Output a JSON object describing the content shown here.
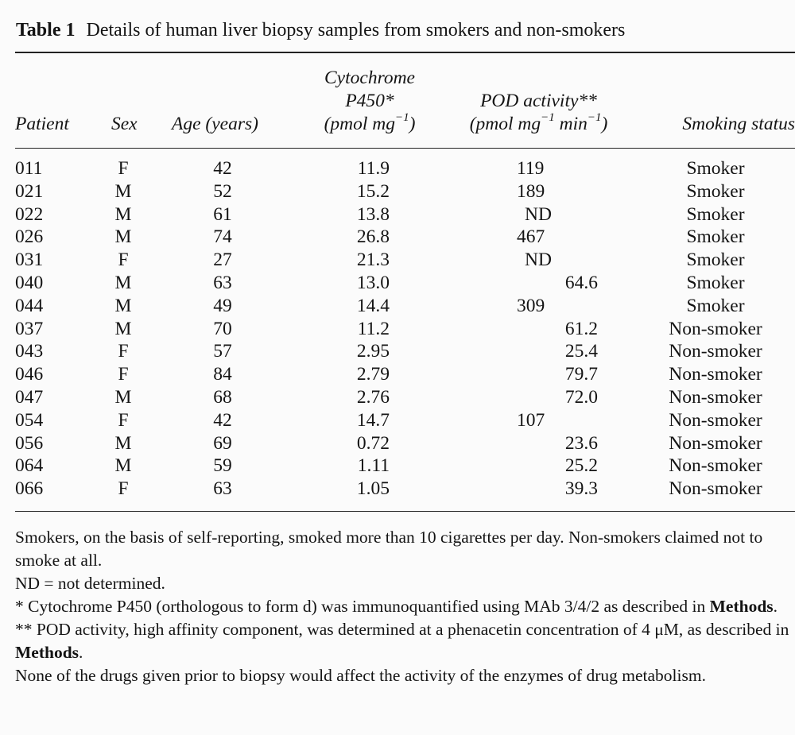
{
  "table": {
    "label": "Table 1",
    "title": "Details of human liver biopsy samples from smokers and non-smokers",
    "headers": {
      "patient": "Patient",
      "sex": "Sex",
      "age": "Age (years)",
      "cyp_line1": "Cytochrome",
      "cyp_line2": "P450*",
      "cyp_unit_pre": "(pmol mg",
      "cyp_unit_sup": "−1",
      "cyp_unit_post": ")",
      "pod_line1": "POD activity**",
      "pod_unit_pre": "(pmol mg",
      "pod_unit_sup1": "−1",
      "pod_unit_mid": " min",
      "pod_unit_sup2": "−1",
      "pod_unit_post": ")",
      "smoking": "Smoking status"
    },
    "rows": [
      {
        "patient": "011",
        "sex": "F",
        "age": "42",
        "cyp": "11.9",
        "pod": "119",
        "status": "Smoker"
      },
      {
        "patient": "021",
        "sex": "M",
        "age": "52",
        "cyp": "15.2",
        "pod": "189",
        "status": "Smoker"
      },
      {
        "patient": "022",
        "sex": "M",
        "age": "61",
        "cyp": "13.8",
        "pod": "ND",
        "status": "Smoker"
      },
      {
        "patient": "026",
        "sex": "M",
        "age": "74",
        "cyp": "26.8",
        "pod": "467",
        "status": "Smoker"
      },
      {
        "patient": "031",
        "sex": "F",
        "age": "27",
        "cyp": "21.3",
        "pod": "ND",
        "status": "Smoker"
      },
      {
        "patient": "040",
        "sex": "M",
        "age": "63",
        "cyp": "13.0",
        "pod": "64.6",
        "status": "Smoker"
      },
      {
        "patient": "044",
        "sex": "M",
        "age": "49",
        "cyp": "14.4",
        "pod": "309",
        "status": "Smoker"
      },
      {
        "patient": "037",
        "sex": "M",
        "age": "70",
        "cyp": "11.2",
        "pod": "61.2",
        "status": "Non-smoker"
      },
      {
        "patient": "043",
        "sex": "F",
        "age": "57",
        "cyp": "2.95",
        "pod": "25.4",
        "status": "Non-smoker"
      },
      {
        "patient": "046",
        "sex": "F",
        "age": "84",
        "cyp": "2.79",
        "pod": "79.7",
        "status": "Non-smoker"
      },
      {
        "patient": "047",
        "sex": "M",
        "age": "68",
        "cyp": "2.76",
        "pod": "72.0",
        "status": "Non-smoker"
      },
      {
        "patient": "054",
        "sex": "F",
        "age": "42",
        "cyp": "14.7",
        "pod": "107",
        "status": "Non-smoker"
      },
      {
        "patient": "056",
        "sex": "M",
        "age": "69",
        "cyp": "0.72",
        "pod": "23.6",
        "status": "Non-smoker"
      },
      {
        "patient": "064",
        "sex": "M",
        "age": "59",
        "cyp": "1.11",
        "pod": "25.2",
        "status": "Non-smoker"
      },
      {
        "patient": "066",
        "sex": "F",
        "age": "63",
        "cyp": "1.05",
        "pod": "39.3",
        "status": "Non-smoker"
      }
    ]
  },
  "notes": {
    "smokers": "Smokers, on the basis of self-reporting, smoked more than 10 cigarettes per day. Non-smokers claimed not to smoke at all.",
    "nd": "ND = not determined.",
    "cyp_pre": "* Cytochrome P450 (orthologous to form d) was immunoquantified using MAb 3/4/2 as described in ",
    "cyp_bold": "Methods",
    "cyp_post": ".",
    "pod_pre": "** POD activity, high affinity component, was determined at a phenacetin concentration of 4 μM, as described in ",
    "pod_bold": "Methods",
    "pod_post": ".",
    "drugs": "None of the drugs given prior to biopsy would affect the activity of the enzymes of drug metabolism."
  }
}
